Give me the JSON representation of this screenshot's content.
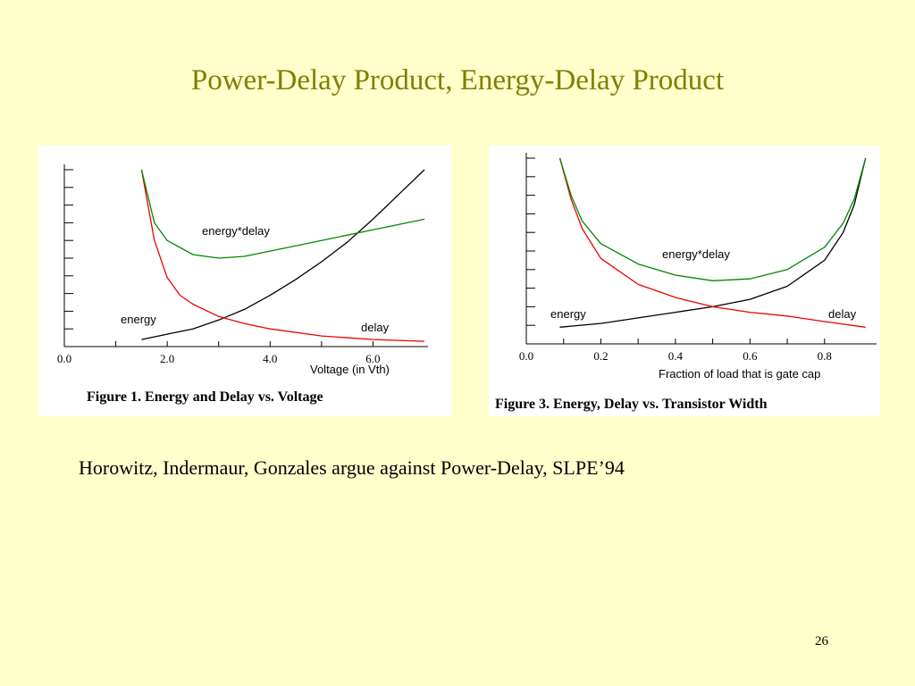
{
  "slide": {
    "title": "Power-Delay Product, Energy-Delay Product",
    "citation": "Horowitz, Indermaur, Gonzales argue against Power-Delay, SLPE’94",
    "page_number": "26"
  },
  "colors": {
    "background": "#ffffcc",
    "title": "#808000",
    "energy": "#000000",
    "delay": "#ee0000",
    "energy_delay": "#008800"
  },
  "chart_data": [
    {
      "type": "line",
      "caption": "Figure 1. Energy and Delay vs. Voltage",
      "xlabel": "Voltage (in Vth)",
      "ylabel": "",
      "xlim": [
        0.0,
        7.0
      ],
      "ylim": [
        0.0,
        1.0
      ],
      "x_ticks": [
        "0.0",
        "2.0",
        "4.0",
        "6.0"
      ],
      "y_tick_count": 10,
      "y_tick_labels": "none",
      "annotations": {
        "energy": "energy",
        "delay": "delay",
        "energy_delay": "energy*delay"
      },
      "series": [
        {
          "name": "energy",
          "color": "#000000",
          "x": [
            1.5,
            2.0,
            2.5,
            3.0,
            3.5,
            4.0,
            4.5,
            5.0,
            5.5,
            6.0,
            6.5,
            7.0
          ],
          "values": [
            0.04,
            0.07,
            0.1,
            0.15,
            0.21,
            0.29,
            0.38,
            0.48,
            0.59,
            0.72,
            0.86,
            1.0
          ]
        },
        {
          "name": "delay",
          "color": "#ee0000",
          "x": [
            1.5,
            1.75,
            2.0,
            2.25,
            2.5,
            3.0,
            3.5,
            4.0,
            5.0,
            6.0,
            7.0
          ],
          "values": [
            1.0,
            0.6,
            0.39,
            0.29,
            0.24,
            0.17,
            0.13,
            0.1,
            0.06,
            0.04,
            0.03
          ]
        },
        {
          "name": "energy*delay",
          "color": "#008800",
          "x": [
            1.5,
            1.75,
            2.0,
            2.5,
            3.0,
            3.5,
            4.0,
            5.0,
            6.0,
            7.0
          ],
          "values": [
            1.0,
            0.7,
            0.6,
            0.52,
            0.5,
            0.51,
            0.54,
            0.6,
            0.66,
            0.72
          ]
        }
      ]
    },
    {
      "type": "line",
      "caption": "Figure 3. Energy, Delay vs. Transistor Width",
      "xlabel": "Fraction of load that is gate cap",
      "ylabel": "",
      "xlim": [
        0.0,
        0.93
      ],
      "ylim": [
        0.0,
        1.0
      ],
      "x_ticks": [
        "0.0",
        "0.2",
        "0.4",
        "0.6",
        "0.8"
      ],
      "y_tick_count": 10,
      "y_tick_labels": "none",
      "annotations": {
        "energy": "energy",
        "delay": "delay",
        "energy_delay": "energy*delay"
      },
      "series": [
        {
          "name": "energy",
          "color": "#000000",
          "x": [
            0.09,
            0.2,
            0.3,
            0.4,
            0.5,
            0.6,
            0.7,
            0.8,
            0.85,
            0.88,
            0.91
          ],
          "values": [
            0.09,
            0.11,
            0.14,
            0.17,
            0.2,
            0.24,
            0.31,
            0.45,
            0.6,
            0.75,
            1.0
          ]
        },
        {
          "name": "delay",
          "color": "#ee0000",
          "x": [
            0.09,
            0.12,
            0.15,
            0.2,
            0.3,
            0.4,
            0.5,
            0.6,
            0.7,
            0.8,
            0.91
          ],
          "values": [
            1.0,
            0.78,
            0.62,
            0.46,
            0.32,
            0.25,
            0.2,
            0.17,
            0.15,
            0.12,
            0.09
          ]
        },
        {
          "name": "energy*delay",
          "color": "#008800",
          "x": [
            0.09,
            0.12,
            0.15,
            0.2,
            0.3,
            0.4,
            0.5,
            0.6,
            0.7,
            0.8,
            0.85,
            0.88,
            0.91
          ],
          "values": [
            1.0,
            0.8,
            0.66,
            0.54,
            0.43,
            0.37,
            0.34,
            0.35,
            0.4,
            0.52,
            0.65,
            0.78,
            1.0
          ]
        }
      ]
    }
  ]
}
